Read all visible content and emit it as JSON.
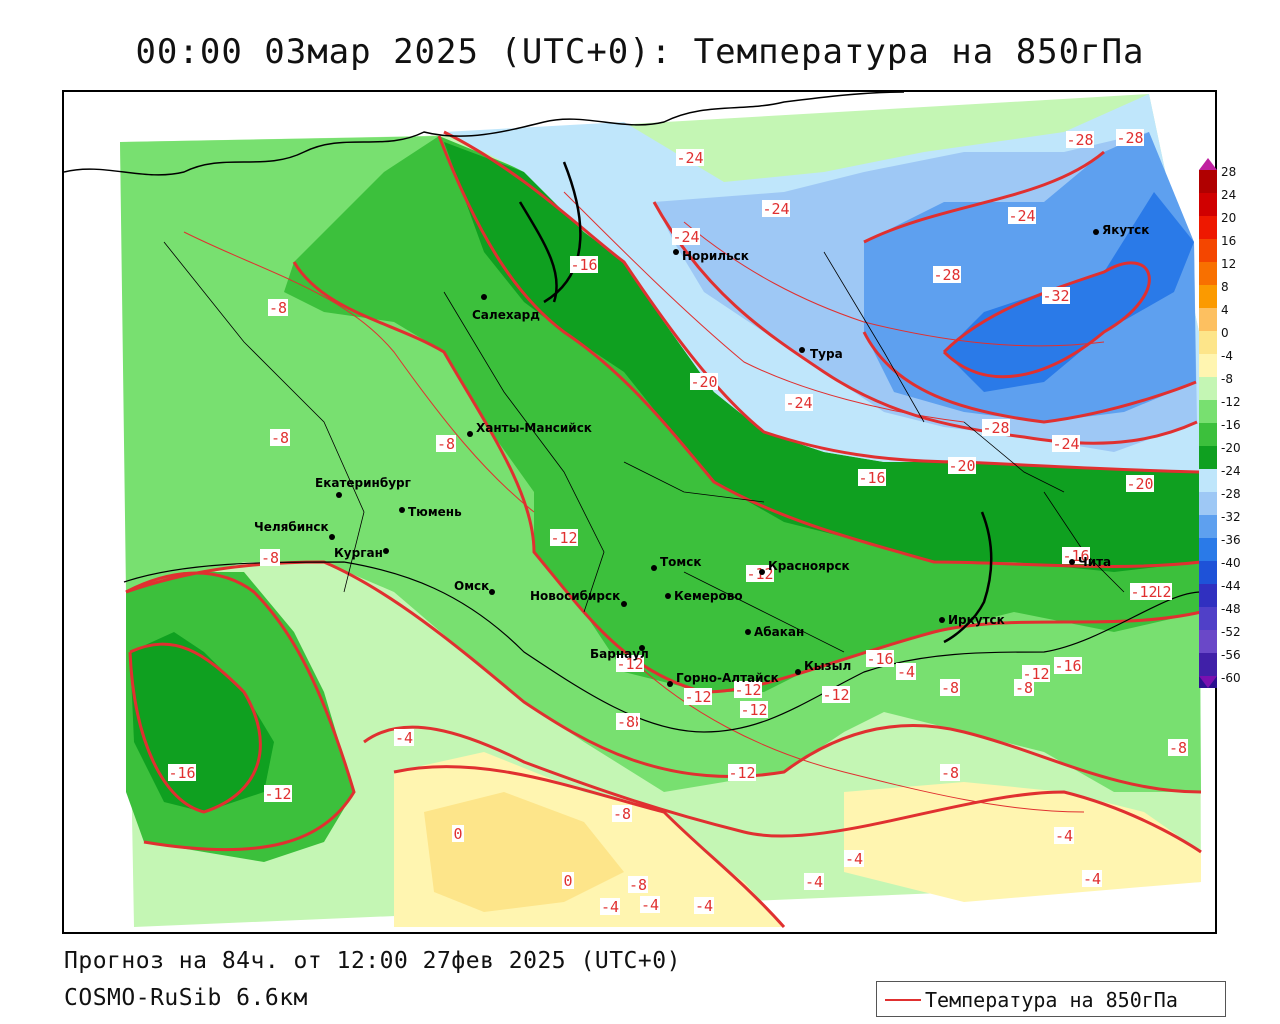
{
  "title": "00:00 03мар 2025 (UTC+0): Температура на 850гПа",
  "forecast_line": "Прогноз на 84ч. от 12:00 27фев 2025 (UTC+0)",
  "model_line": "COSMO-RuSib 6.6км",
  "legend": {
    "label": "Температура на 850гПа",
    "line_color": "#e03030"
  },
  "colors": {
    "contour": "#e03030",
    "border": "#000000",
    "city": "#000000",
    "bands": {
      "-32": "#2a7ae8",
      "-28": "#5ea0ef",
      "-24": "#9ec8f5",
      "-20": "#bfe6fb",
      "-16": "#0fa020",
      "-12": "#3cc03c",
      "-8": "#78e070",
      "-4": "#c4f6b4",
      "0": "#fff5b0",
      "4": "#fde58a"
    }
  },
  "colorbar": {
    "labels": [
      "28",
      "24",
      "20",
      "16",
      "12",
      "8",
      "4",
      "0",
      "-4",
      "-8",
      "-12",
      "-16",
      "-20",
      "-24",
      "-28",
      "-32",
      "-36",
      "-40",
      "-44",
      "-48",
      "-52",
      "-56",
      "-60"
    ],
    "colors": [
      "#b00000",
      "#d00000",
      "#ee1800",
      "#f44600",
      "#f87000",
      "#fb9a00",
      "#fdc060",
      "#fde58a",
      "#fff5b0",
      "#c4f6b4",
      "#78e070",
      "#3cc03c",
      "#0fa020",
      "#bfe6fb",
      "#9ec8f5",
      "#5ea0ef",
      "#2a7ae8",
      "#1e52d8",
      "#3030c0",
      "#5040c8",
      "#6a48c8",
      "#4020a8",
      "#2a1090",
      "#7a10b0"
    ]
  },
  "cities": [
    {
      "name": "Салехард"
    },
    {
      "name": "Норильск"
    },
    {
      "name": "Якутск"
    },
    {
      "name": "Тура"
    },
    {
      "name": "Ханты-Мансийск"
    },
    {
      "name": "Екатеринбург"
    },
    {
      "name": "Тюмень"
    },
    {
      "name": "Челябинск"
    },
    {
      "name": "Курган"
    },
    {
      "name": "Омск"
    },
    {
      "name": "Новосибирск"
    },
    {
      "name": "Томск"
    },
    {
      "name": "Кемерово"
    },
    {
      "name": "Красноярск"
    },
    {
      "name": "Барнаул"
    },
    {
      "name": "Абакан"
    },
    {
      "name": "Горно-Алтайск"
    },
    {
      "name": "Кызыл"
    },
    {
      "name": "Иркутск"
    },
    {
      "name": "Чита"
    }
  ],
  "contour_labels": [
    "-24",
    "-24",
    "-24",
    "-28",
    "-28",
    "-24",
    "-16",
    "-28",
    "-32",
    "-20",
    "-24",
    "-28",
    "-24",
    "-20",
    "-20",
    "-16",
    "-16",
    "-8",
    "-8",
    "-8",
    "-12",
    "-12",
    "-8",
    "-16",
    "-12",
    "-12",
    "-12",
    "-16",
    "-12",
    "-12",
    "-8",
    "-12",
    "-12",
    "-8",
    "-8",
    "-12",
    "-8",
    "-4",
    "-12",
    "-8",
    "-8",
    "-16",
    "-12",
    "-4",
    "-4",
    "-8",
    "-4",
    "-4",
    "-4",
    "0",
    "0",
    "-8",
    "-4",
    "-4",
    "-4"
  ]
}
